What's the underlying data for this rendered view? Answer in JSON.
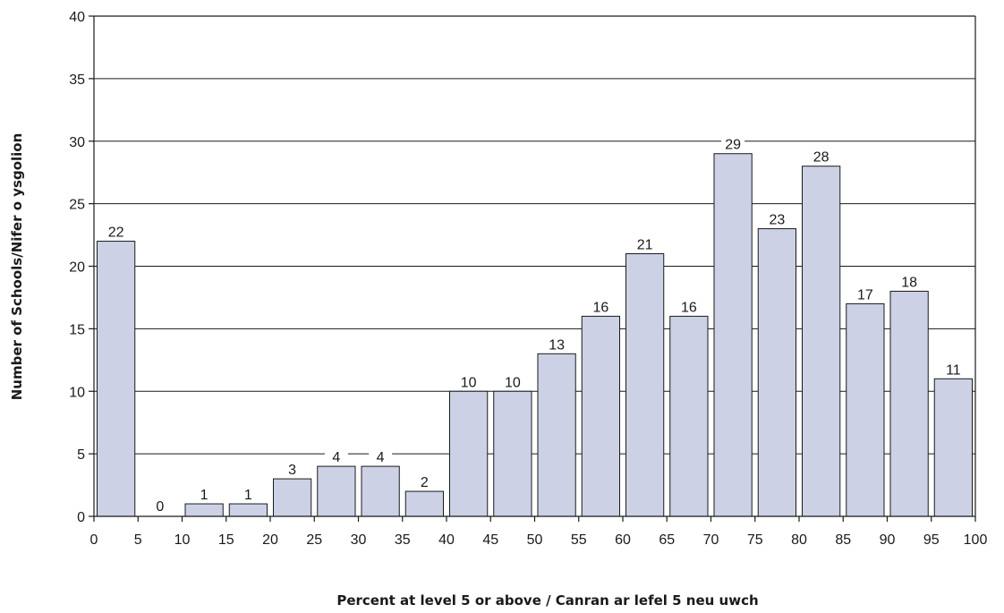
{
  "chart_data": {
    "type": "bar",
    "title": "",
    "xlabel": "Percent at level 5 or above / Canran ar lefel 5 neu uwch",
    "ylabel": "Number of Schools/Nifer o ysgolion",
    "bins": [
      {
        "from": 0,
        "to": 5,
        "value": 22
      },
      {
        "from": 5,
        "to": 10,
        "value": 0
      },
      {
        "from": 10,
        "to": 15,
        "value": 1
      },
      {
        "from": 15,
        "to": 20,
        "value": 1
      },
      {
        "from": 20,
        "to": 25,
        "value": 3
      },
      {
        "from": 25,
        "to": 30,
        "value": 4
      },
      {
        "from": 30,
        "to": 35,
        "value": 4
      },
      {
        "from": 35,
        "to": 40,
        "value": 2
      },
      {
        "from": 40,
        "to": 45,
        "value": 10
      },
      {
        "from": 45,
        "to": 50,
        "value": 10
      },
      {
        "from": 50,
        "to": 55,
        "value": 13
      },
      {
        "from": 55,
        "to": 60,
        "value": 16
      },
      {
        "from": 60,
        "to": 65,
        "value": 21
      },
      {
        "from": 65,
        "to": 70,
        "value": 16
      },
      {
        "from": 70,
        "to": 75,
        "value": 29
      },
      {
        "from": 75,
        "to": 80,
        "value": 23
      },
      {
        "from": 80,
        "to": 85,
        "value": 28
      },
      {
        "from": 85,
        "to": 90,
        "value": 17
      },
      {
        "from": 90,
        "to": 95,
        "value": 18
      },
      {
        "from": 95,
        "to": 100,
        "value": 11
      }
    ],
    "xlim": [
      0,
      100
    ],
    "ylim": [
      0,
      40
    ],
    "xticks": [
      0,
      5,
      10,
      15,
      20,
      25,
      30,
      35,
      40,
      45,
      50,
      55,
      60,
      65,
      70,
      75,
      80,
      85,
      90,
      95,
      100
    ],
    "yticks": [
      0,
      5,
      10,
      15,
      20,
      25,
      30,
      35,
      40
    ],
    "grid": "horizontal",
    "legend": "none",
    "colors": {
      "bar_fill": "#cdd1e6",
      "bar_stroke": "#1a1a1a"
    }
  }
}
